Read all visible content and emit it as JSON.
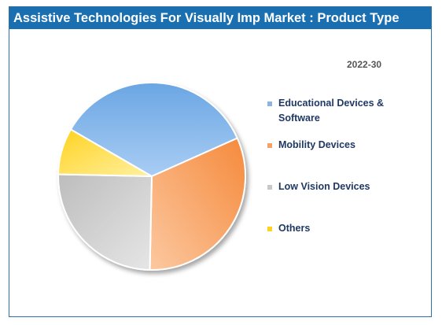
{
  "chart_data": {
    "type": "pie",
    "title": "Assistive Technologies For Visually Imp Market : Product Type",
    "subtitle": "2022-30",
    "categories": [
      "Educational Devices & Software",
      "Mobility Devices",
      "Low Vision Devices",
      "Others"
    ],
    "values": [
      35,
      32,
      25,
      8
    ],
    "colors": [
      "#5b9bd5",
      "#ed7d31",
      "#a5a5a5",
      "#ffc000"
    ],
    "legend_position": "right"
  }
}
